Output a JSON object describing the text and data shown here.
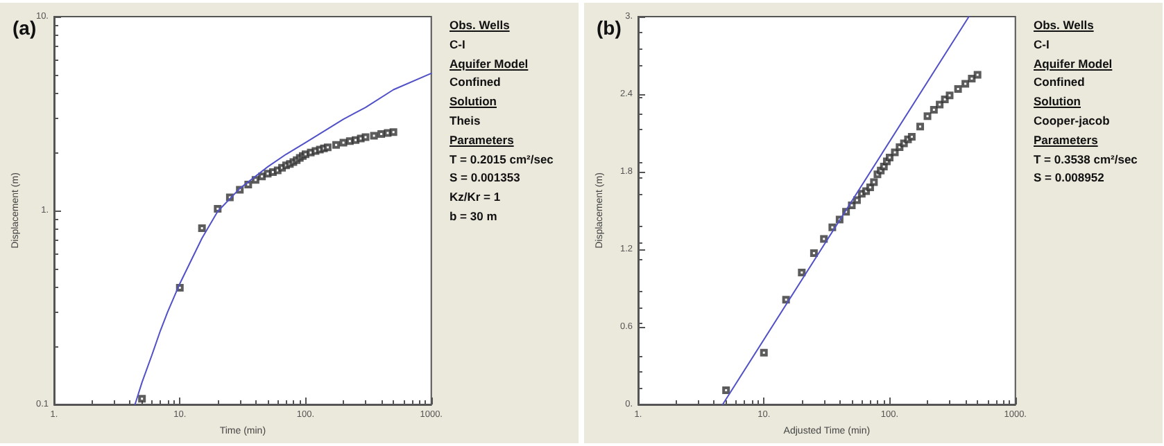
{
  "chart_data": [
    {
      "type": "scatter",
      "title": "(a)",
      "xlabel": "Time (min)",
      "ylabel": "Displacement (m)",
      "log": "xy",
      "grid": false,
      "xlim": [
        1,
        1000
      ],
      "ylim": [
        0.1,
        10
      ],
      "xticks": [
        {
          "value": 1,
          "label": "1."
        },
        {
          "value": 10,
          "label": "10."
        },
        {
          "value": 100,
          "label": "100."
        },
        {
          "value": 1000,
          "label": "1000."
        }
      ],
      "yticks": [
        {
          "value": 0.1,
          "label": "0.1"
        },
        {
          "value": 1,
          "label": "1."
        },
        {
          "value": 10,
          "label": "10."
        }
      ],
      "annotations": [
        "Obs. Wells",
        "C-I",
        "Aquifer Model",
        "Confined",
        "Solution",
        "Theis",
        "Parameters",
        "T = 0.2015 cm²/sec",
        "S = 0.001353",
        "Kz/Kr = 1",
        "b = 30 m"
      ],
      "series": [
        {
          "marker": "square",
          "color": "#333333",
          "x": [
            5,
            10,
            15,
            20,
            25,
            30,
            35,
            40,
            45,
            50,
            55,
            60,
            65,
            70,
            75,
            80,
            85,
            90,
            95,
            100,
            110,
            120,
            130,
            140,
            150,
            175,
            200,
            225,
            250,
            275,
            300,
            350,
            400,
            450,
            500
          ],
          "values": [
            0.107,
            0.4,
            0.81,
            1.02,
            1.17,
            1.28,
            1.36,
            1.44,
            1.5,
            1.55,
            1.58,
            1.61,
            1.66,
            1.71,
            1.74,
            1.78,
            1.82,
            1.87,
            1.91,
            1.95,
            1.99,
            2.03,
            2.06,
            2.09,
            2.12,
            2.18,
            2.24,
            2.28,
            2.31,
            2.35,
            2.39,
            2.43,
            2.48,
            2.51,
            2.54
          ]
        },
        {
          "type": "line",
          "marker": "none",
          "line_style": "solid",
          "color": "#5050c8",
          "x": [
            4.4,
            5,
            6,
            7,
            8,
            10,
            15,
            20,
            30,
            50,
            70,
            100,
            200,
            300,
            500,
            1000
          ],
          "values": [
            0.1,
            0.13,
            0.18,
            0.24,
            0.3,
            0.42,
            0.72,
            0.99,
            1.3,
            1.68,
            1.95,
            2.24,
            2.96,
            3.4,
            4.2,
            5.1
          ]
        }
      ]
    },
    {
      "type": "scatter",
      "title": "(b)",
      "xlabel": "Adjusted Time (min)",
      "ylabel": "Displacement (m)",
      "log": "x",
      "grid": false,
      "xlim": [
        1,
        1000
      ],
      "ylim": [
        0,
        3
      ],
      "xticks": [
        {
          "value": 1,
          "label": "1."
        },
        {
          "value": 10,
          "label": "10."
        },
        {
          "value": 100,
          "label": "100."
        },
        {
          "value": 1000,
          "label": "1000."
        }
      ],
      "yticks": [
        {
          "value": 0,
          "label": "0."
        },
        0.6,
        1.2,
        1.8,
        2.4,
        {
          "value": 3,
          "label": "3."
        }
      ],
      "annotations": [
        "Obs. Wells",
        "C-I",
        "Aquifer Model",
        "Confined",
        "Solution",
        "Cooper-jacob",
        "Parameters",
        "T = 0.3538 cm²/sec",
        "S = 0.008952"
      ],
      "series": [
        {
          "marker": "square",
          "color": "#333333",
          "x": [
            5,
            10,
            15,
            20,
            25,
            30,
            35,
            40,
            45,
            50,
            55,
            60,
            65,
            70,
            75,
            80,
            85,
            90,
            95,
            100,
            110,
            120,
            130,
            140,
            150,
            175,
            200,
            225,
            250,
            275,
            300,
            350,
            400,
            450,
            500
          ],
          "values": [
            0.11,
            0.4,
            0.81,
            1.02,
            1.17,
            1.28,
            1.37,
            1.43,
            1.49,
            1.54,
            1.58,
            1.63,
            1.65,
            1.68,
            1.72,
            1.78,
            1.81,
            1.84,
            1.88,
            1.91,
            1.95,
            1.99,
            2.02,
            2.05,
            2.07,
            2.15,
            2.23,
            2.28,
            2.32,
            2.36,
            2.39,
            2.44,
            2.48,
            2.52,
            2.55
          ]
        },
        {
          "type": "line",
          "marker": "none",
          "line_style": "solid",
          "color": "#5050c8",
          "x": [
            4.7,
            427
          ],
          "values": [
            0,
            3
          ]
        }
      ]
    }
  ]
}
